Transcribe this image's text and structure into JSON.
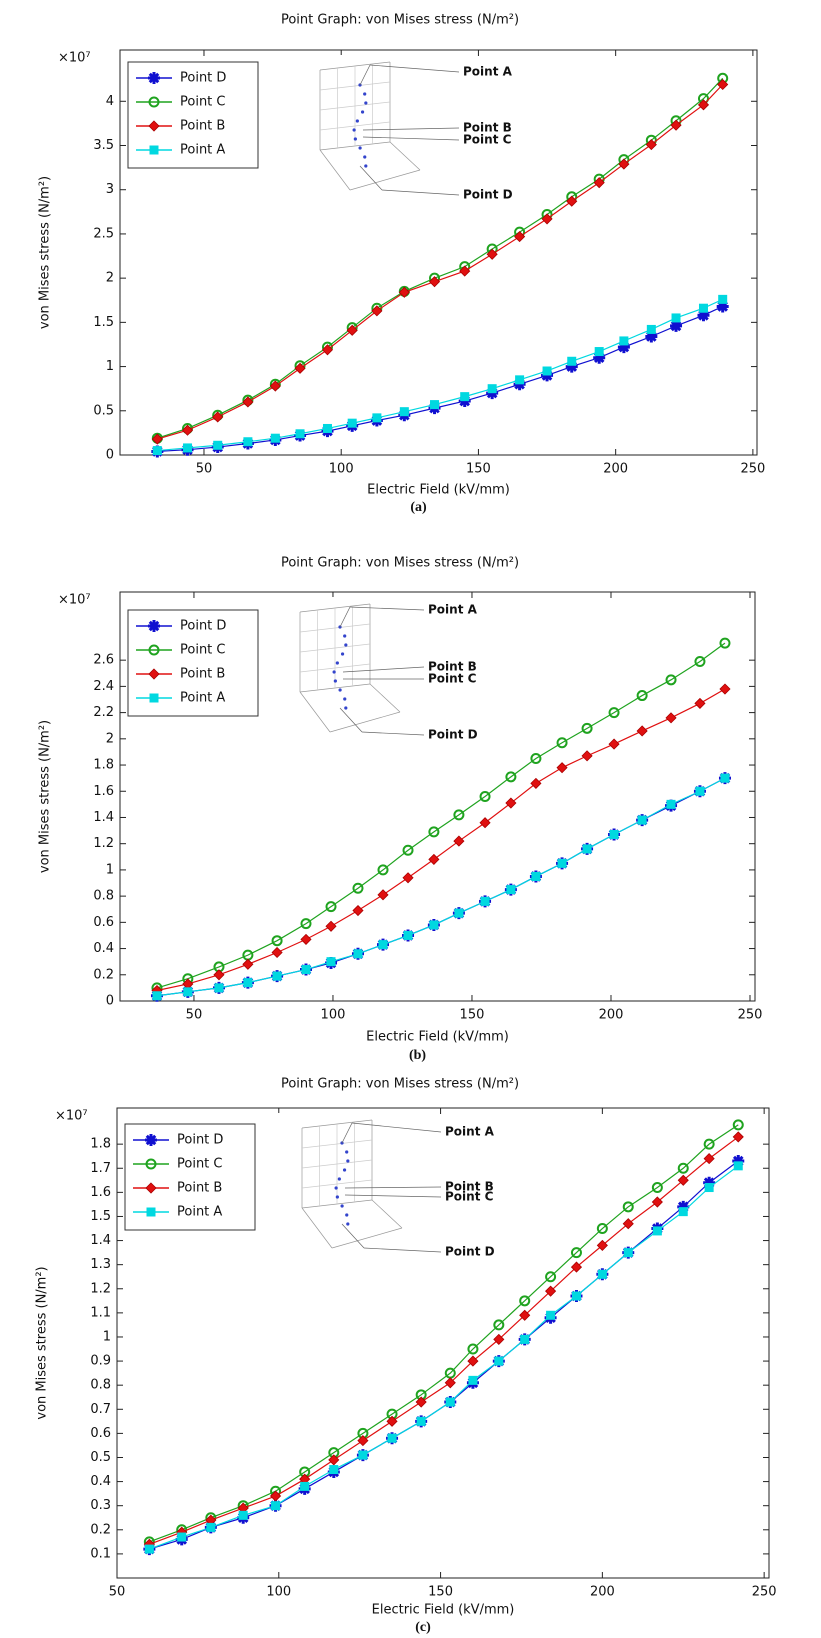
{
  "chart_data": [
    {
      "type": "line",
      "title": "Point Graph: von Mises stress (N/m²)",
      "xlabel": "Electric Field (kV/mm)",
      "ylabel": "von Mises stress (N/m²)",
      "y_multiplier": "×10⁷",
      "caption": "(a)",
      "inset_labels": [
        "Point A",
        "Point B",
        "Point C",
        "Point D"
      ],
      "xlim": [
        19.4,
        251.5
      ],
      "xticks": [
        50,
        100,
        150,
        200,
        250
      ],
      "ylim": [
        0,
        4.58
      ],
      "yticks": [
        0,
        0.5,
        1,
        1.5,
        2,
        2.5,
        3,
        3.5,
        4
      ],
      "legend": "upper left",
      "x": [
        33,
        44,
        55,
        66,
        76,
        85,
        95,
        104,
        113,
        123,
        134,
        145,
        155,
        165,
        175,
        184,
        194,
        203,
        213,
        222,
        232,
        239
      ],
      "series": [
        {
          "name": "Point D",
          "color": "#1010d0",
          "marker": "star",
          "values": [
            0.04,
            0.06,
            0.09,
            0.13,
            0.17,
            0.22,
            0.27,
            0.33,
            0.39,
            0.45,
            0.53,
            0.61,
            0.7,
            0.8,
            0.9,
            1.0,
            1.1,
            1.22,
            1.34,
            1.46,
            1.58,
            1.68
          ]
        },
        {
          "name": "Point C",
          "color": "#1fa31f",
          "marker": "circle",
          "values": [
            0.19,
            0.3,
            0.45,
            0.62,
            0.8,
            1.01,
            1.22,
            1.44,
            1.66,
            1.85,
            2.0,
            2.13,
            2.33,
            2.52,
            2.72,
            2.92,
            3.12,
            3.34,
            3.56,
            3.78,
            4.03,
            4.26
          ]
        },
        {
          "name": "Point B",
          "color": "#e01010",
          "marker": "diamond",
          "values": [
            0.18,
            0.28,
            0.43,
            0.6,
            0.78,
            0.98,
            1.19,
            1.41,
            1.63,
            1.84,
            1.96,
            2.08,
            2.27,
            2.47,
            2.67,
            2.87,
            3.08,
            3.29,
            3.51,
            3.73,
            3.96,
            4.19
          ]
        },
        {
          "name": "Point A",
          "color": "#00d8e0",
          "marker": "square",
          "values": [
            0.05,
            0.08,
            0.11,
            0.15,
            0.19,
            0.24,
            0.3,
            0.36,
            0.42,
            0.49,
            0.57,
            0.66,
            0.75,
            0.85,
            0.95,
            1.06,
            1.17,
            1.29,
            1.42,
            1.55,
            1.66,
            1.76
          ]
        }
      ]
    },
    {
      "type": "line",
      "title": "Point Graph: von Mises stress (N/m²)",
      "xlabel": "Electric Field (kV/mm)",
      "ylabel": "von Mises stress (N/m²)",
      "y_multiplier": "×10⁷",
      "caption": "(b)",
      "inset_labels": [
        "Point A",
        "Point B",
        "Point C",
        "Point D"
      ],
      "xlim": [
        23.4,
        251.8
      ],
      "xticks": [
        50,
        100,
        150,
        200,
        250
      ],
      "ylim": [
        0,
        3.12
      ],
      "yticks": [
        0,
        0.2,
        0.4,
        0.6,
        0.8,
        1,
        1.2,
        1.4,
        1.6,
        1.8,
        2,
        2.2,
        2.4,
        2.6
      ],
      "legend": "upper left",
      "x": [
        36.7,
        47.8,
        59,
        69.4,
        79.9,
        90.3,
        99.3,
        109,
        118,
        127,
        136.3,
        145.3,
        154.7,
        164,
        173,
        182.4,
        191.4,
        201.1,
        211.2,
        221.6,
        232,
        241
      ],
      "series": [
        {
          "name": "Point D",
          "color": "#1010d0",
          "marker": "star",
          "values": [
            0.04,
            0.07,
            0.1,
            0.14,
            0.19,
            0.24,
            0.29,
            0.36,
            0.43,
            0.5,
            0.58,
            0.67,
            0.76,
            0.85,
            0.95,
            1.05,
            1.16,
            1.27,
            1.38,
            1.49,
            1.6,
            1.7
          ]
        },
        {
          "name": "Point C",
          "color": "#1fa31f",
          "marker": "circle",
          "values": [
            0.1,
            0.17,
            0.26,
            0.35,
            0.46,
            0.59,
            0.72,
            0.86,
            1.0,
            1.15,
            1.29,
            1.42,
            1.56,
            1.71,
            1.85,
            1.97,
            2.08,
            2.2,
            2.33,
            2.45,
            2.59,
            2.73
          ]
        },
        {
          "name": "Point B",
          "color": "#e01010",
          "marker": "diamond",
          "values": [
            0.08,
            0.13,
            0.2,
            0.28,
            0.37,
            0.47,
            0.57,
            0.69,
            0.81,
            0.94,
            1.08,
            1.22,
            1.36,
            1.51,
            1.66,
            1.78,
            1.87,
            1.96,
            2.06,
            2.16,
            2.27,
            2.38
          ]
        },
        {
          "name": "Point A",
          "color": "#00d8e0",
          "marker": "square",
          "values": [
            0.04,
            0.07,
            0.1,
            0.14,
            0.19,
            0.24,
            0.3,
            0.36,
            0.43,
            0.5,
            0.58,
            0.67,
            0.76,
            0.85,
            0.95,
            1.05,
            1.16,
            1.27,
            1.38,
            1.5,
            1.6,
            1.7
          ]
        }
      ]
    },
    {
      "type": "line",
      "title": "Point Graph: von Mises stress (N/m²)",
      "xlabel": "Electric Field (kV/mm)",
      "ylabel": "von Mises stress (N/m²)",
      "y_multiplier": "×10⁷",
      "caption": "(c)",
      "inset_labels": [
        "Point A",
        "Point B",
        "Point C",
        "Point D"
      ],
      "xlim": [
        50,
        251.5
      ],
      "xticks": [
        50,
        100,
        150,
        200,
        250
      ],
      "ylim": [
        0,
        1.95
      ],
      "yticks": [
        0.1,
        0.2,
        0.3,
        0.4,
        0.5,
        0.6,
        0.7,
        0.8,
        0.9,
        1,
        1.1,
        1.2,
        1.3,
        1.4,
        1.5,
        1.6,
        1.7,
        1.8
      ],
      "legend": "upper left",
      "x": [
        60,
        70,
        79,
        89,
        99,
        108,
        117,
        126,
        135,
        144,
        153,
        160,
        168,
        176,
        184,
        192,
        200,
        208,
        217,
        225,
        233,
        242
      ],
      "series": [
        {
          "name": "Point D",
          "color": "#1010d0",
          "marker": "star",
          "values": [
            0.12,
            0.16,
            0.21,
            0.25,
            0.3,
            0.37,
            0.44,
            0.51,
            0.58,
            0.65,
            0.73,
            0.81,
            0.9,
            0.99,
            1.08,
            1.17,
            1.26,
            1.35,
            1.45,
            1.54,
            1.64,
            1.73
          ]
        },
        {
          "name": "Point C",
          "color": "#1fa31f",
          "marker": "circle",
          "values": [
            0.15,
            0.2,
            0.25,
            0.3,
            0.36,
            0.44,
            0.52,
            0.6,
            0.68,
            0.76,
            0.85,
            0.95,
            1.05,
            1.15,
            1.25,
            1.35,
            1.45,
            1.54,
            1.62,
            1.7,
            1.8,
            1.88
          ]
        },
        {
          "name": "Point B",
          "color": "#e01010",
          "marker": "diamond",
          "values": [
            0.14,
            0.19,
            0.24,
            0.29,
            0.34,
            0.41,
            0.49,
            0.57,
            0.65,
            0.73,
            0.81,
            0.9,
            0.99,
            1.09,
            1.19,
            1.29,
            1.38,
            1.47,
            1.56,
            1.65,
            1.74,
            1.83
          ]
        },
        {
          "name": "Point A",
          "color": "#00d8e0",
          "marker": "square",
          "values": [
            0.12,
            0.17,
            0.21,
            0.26,
            0.3,
            0.38,
            0.45,
            0.51,
            0.58,
            0.65,
            0.73,
            0.82,
            0.9,
            0.99,
            1.09,
            1.17,
            1.26,
            1.35,
            1.44,
            1.52,
            1.62,
            1.71
          ]
        }
      ]
    }
  ]
}
